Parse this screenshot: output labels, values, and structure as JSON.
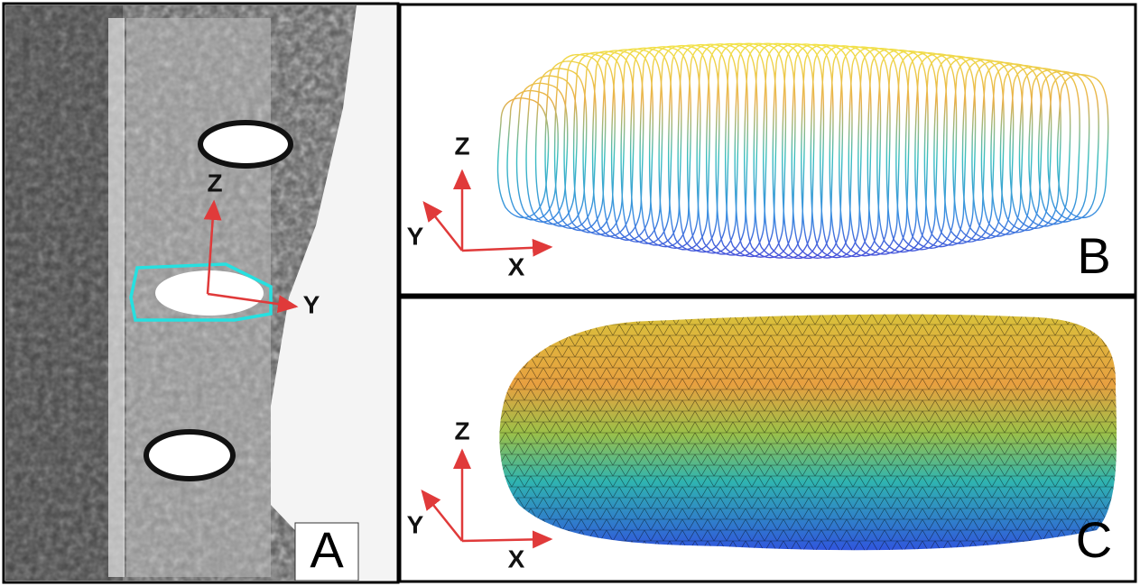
{
  "panels": [
    {
      "label": "A",
      "axes": [
        "Z",
        "Y"
      ]
    },
    {
      "label": "B",
      "axes": [
        "Z",
        "Y",
        "X"
      ]
    },
    {
      "label": "C",
      "axes": [
        "Z",
        "Y",
        "X"
      ]
    }
  ]
}
